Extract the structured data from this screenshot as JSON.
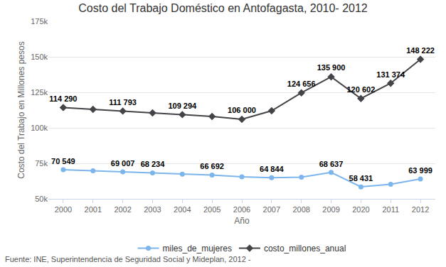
{
  "chart_data": {
    "type": "line",
    "title": "Costo del Trabajo Doméstico en Antofagasta, 2010- 2012",
    "x_label": "Año",
    "y_label": "Costo del Trabajo en Millones pesos",
    "annotations": [
      "Fuente: INE, Superintendencia de Seguridad Social y Mideplan, 2012 -"
    ],
    "categories": [
      "2000",
      "2001",
      "2002",
      "2003",
      "2004",
      "2005",
      "2006",
      "2007",
      "2008",
      "2009",
      "2020",
      "2011",
      "2012"
    ],
    "series": [
      {
        "name": "miles_de_mujeres",
        "color": "#7cb5ec",
        "marker": "circle",
        "values": [
          70549,
          69800,
          69007,
          68234,
          67400,
          66692,
          65500,
          64844,
          65200,
          68637,
          58431,
          60300,
          63999
        ],
        "value_labels": [
          "70 549",
          null,
          "69 007",
          "68 234",
          null,
          "66 692",
          null,
          "64 844",
          null,
          "68 637",
          "58 431",
          null,
          "63 999"
        ]
      },
      {
        "name": "costo_millones_anual",
        "color": "#434348",
        "marker": "diamond",
        "values": [
          114290,
          113000,
          111793,
          110500,
          109294,
          108000,
          106000,
          112000,
          124656,
          135900,
          120602,
          131374,
          148222
        ],
        "value_labels": [
          "114 290",
          null,
          "111 793",
          null,
          "109 294",
          null,
          "106 000",
          null,
          "124 656",
          "135 900",
          "120 602",
          "131 374",
          "148 222"
        ]
      }
    ],
    "ylim": [
      50000,
      175000
    ],
    "yticks": [
      {
        "value": 50000,
        "label": "50k"
      },
      {
        "value": 75000,
        "label": "75k"
      },
      {
        "value": 100000,
        "label": "100k"
      },
      {
        "value": 125000,
        "label": "125k"
      },
      {
        "value": 150000,
        "label": "150k"
      },
      {
        "value": 175000,
        "label": "175k"
      }
    ],
    "grid": true,
    "legend": "bottom",
    "data_labels": true
  }
}
